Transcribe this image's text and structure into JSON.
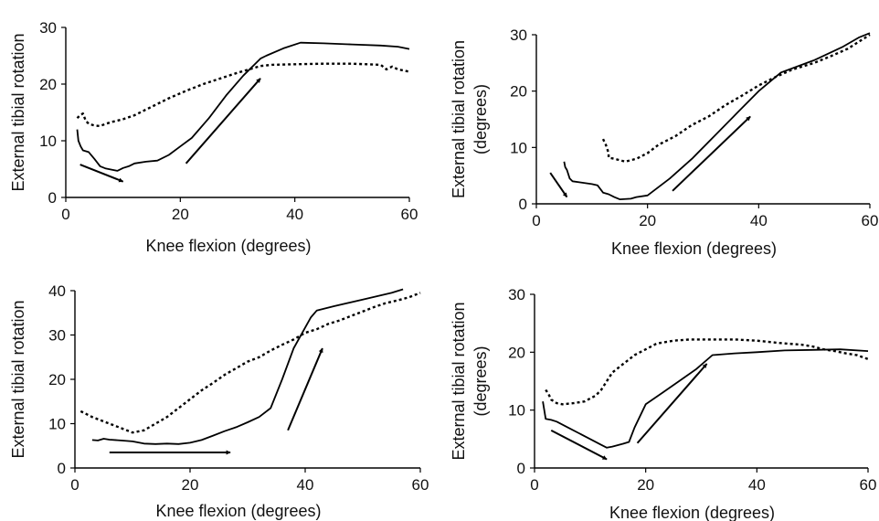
{
  "chart_data": [
    {
      "type": "line",
      "xlabel": "Knee flexion (degrees)",
      "ylabel_lines": [
        "External tibial rotation"
      ],
      "xticks": [
        0,
        20,
        40,
        60
      ],
      "yticks": [
        0,
        10,
        20,
        30
      ],
      "xlim": [
        0,
        60
      ],
      "ylim": [
        0,
        30
      ],
      "grid": false,
      "series": [
        {
          "style": "solid",
          "points": [
            [
              2,
              12
            ],
            [
              2.2,
              10
            ],
            [
              2.6,
              9
            ],
            [
              3,
              8.3
            ],
            [
              4,
              8
            ],
            [
              5,
              6.8
            ],
            [
              6,
              5.5
            ],
            [
              7,
              5.1
            ],
            [
              8,
              4.9
            ],
            [
              9,
              4.7
            ],
            [
              10,
              5.2
            ],
            [
              11,
              5.5
            ],
            [
              12,
              6
            ],
            [
              14,
              6.3
            ],
            [
              16,
              6.5
            ],
            [
              18,
              7.5
            ],
            [
              20,
              9
            ],
            [
              22,
              10.5
            ],
            [
              25,
              14
            ],
            [
              28,
              18
            ],
            [
              31,
              21.5
            ],
            [
              34,
              24.5
            ],
            [
              35,
              25
            ],
            [
              38,
              26.3
            ],
            [
              41,
              27.3
            ],
            [
              45,
              27.2
            ],
            [
              50,
              27
            ],
            [
              55,
              26.8
            ],
            [
              58,
              26.6
            ],
            [
              60,
              26.2
            ]
          ]
        },
        {
          "style": "dotted",
          "points": [
            [
              2,
              14
            ],
            [
              2.5,
              14.5
            ],
            [
              3,
              14.8
            ],
            [
              3.5,
              13.5
            ],
            [
              4,
              13
            ],
            [
              5,
              12.7
            ],
            [
              6,
              12.6
            ],
            [
              7,
              13
            ],
            [
              8,
              13.3
            ],
            [
              10,
              13.8
            ],
            [
              12,
              14.5
            ],
            [
              15,
              16
            ],
            [
              18,
              17.5
            ],
            [
              21,
              18.8
            ],
            [
              24,
              20
            ],
            [
              27,
              21
            ],
            [
              30,
              22
            ],
            [
              32,
              22.6
            ],
            [
              34,
              23.2
            ],
            [
              36,
              23.4
            ],
            [
              40,
              23.5
            ],
            [
              45,
              23.6
            ],
            [
              50,
              23.6
            ],
            [
              55,
              23.4
            ],
            [
              56,
              22.6
            ],
            [
              57,
              23.1
            ],
            [
              58,
              22.6
            ],
            [
              60,
              22.2
            ]
          ]
        }
      ],
      "arrows": [
        {
          "from": [
            2.5,
            5.8
          ],
          "to": [
            10,
            2.8
          ]
        },
        {
          "from": [
            21,
            6
          ],
          "to": [
            34,
            21
          ]
        }
      ]
    },
    {
      "type": "line",
      "xlabel": "Knee flexion (degrees)",
      "ylabel_lines": [
        "External tibial rotation",
        "(degrees)"
      ],
      "xticks": [
        0,
        20,
        40,
        60
      ],
      "yticks": [
        0,
        10,
        20,
        30
      ],
      "xlim": [
        0,
        60
      ],
      "ylim": [
        0,
        30
      ],
      "grid": false,
      "series": [
        {
          "style": "solid",
          "points": [
            [
              5,
              7.5
            ],
            [
              5.2,
              6.5
            ],
            [
              5.5,
              6
            ],
            [
              6,
              4.5
            ],
            [
              6.5,
              4
            ],
            [
              8,
              3.8
            ],
            [
              10,
              3.5
            ],
            [
              11,
              3.3
            ],
            [
              12,
              2
            ],
            [
              13,
              1.7
            ],
            [
              14,
              1.2
            ],
            [
              15,
              0.8
            ],
            [
              17,
              0.9
            ],
            [
              18,
              1.2
            ],
            [
              20,
              1.5
            ],
            [
              24,
              4.5
            ],
            [
              28,
              8
            ],
            [
              32,
              12
            ],
            [
              36,
              16
            ],
            [
              40,
              20
            ],
            [
              44,
              23.3
            ],
            [
              50,
              25.5
            ],
            [
              55,
              27.8
            ],
            [
              58,
              29.5
            ],
            [
              60,
              30.3
            ]
          ]
        },
        {
          "style": "dotted",
          "points": [
            [
              12,
              11.5
            ],
            [
              12.5,
              10.5
            ],
            [
              13,
              9
            ],
            [
              13,
              8.2
            ],
            [
              14,
              8
            ],
            [
              16,
              7.5
            ],
            [
              18,
              8
            ],
            [
              20,
              9
            ],
            [
              22,
              10.5
            ],
            [
              25,
              12
            ],
            [
              28,
              14
            ],
            [
              31,
              15.5
            ],
            [
              34,
              17.5
            ],
            [
              37,
              19.2
            ],
            [
              40,
              21
            ],
            [
              43,
              22.5
            ],
            [
              46,
              23.8
            ],
            [
              50,
              25
            ],
            [
              53,
              26.2
            ],
            [
              56,
              27.5
            ],
            [
              60,
              30
            ]
          ]
        }
      ],
      "arrows": [
        {
          "from": [
            2.5,
            5.5
          ],
          "to": [
            5.5,
            1.2
          ]
        },
        {
          "from": [
            24.5,
            2.3
          ],
          "to": [
            38.5,
            15.5
          ]
        }
      ]
    },
    {
      "type": "line",
      "xlabel": "Knee flexion (degrees)",
      "ylabel_lines": [
        "External tibial rotation"
      ],
      "xticks": [
        0,
        20,
        40,
        60
      ],
      "yticks": [
        0,
        10,
        20,
        30,
        40
      ],
      "xlim": [
        0,
        60
      ],
      "ylim": [
        0,
        40
      ],
      "grid": false,
      "series": [
        {
          "style": "solid",
          "points": [
            [
              3,
              6.3
            ],
            [
              4,
              6.2
            ],
            [
              5,
              6.6
            ],
            [
              6,
              6.4
            ],
            [
              8,
              6.2
            ],
            [
              10,
              6
            ],
            [
              12,
              5.5
            ],
            [
              14,
              5.4
            ],
            [
              16,
              5.5
            ],
            [
              18,
              5.4
            ],
            [
              20,
              5.7
            ],
            [
              22,
              6.3
            ],
            [
              24,
              7.3
            ],
            [
              26,
              8.3
            ],
            [
              28,
              9.2
            ],
            [
              30,
              10.3
            ],
            [
              32,
              11.5
            ],
            [
              34,
              13.5
            ],
            [
              36,
              20
            ],
            [
              38,
              27
            ],
            [
              41,
              34
            ],
            [
              42,
              35.5
            ],
            [
              45,
              36.5
            ],
            [
              50,
              38
            ],
            [
              55,
              39.5
            ],
            [
              57,
              40.3
            ]
          ]
        },
        {
          "style": "dotted",
          "points": [
            [
              1,
              12.8
            ],
            [
              3,
              11.5
            ],
            [
              5,
              10.5
            ],
            [
              7,
              9.5
            ],
            [
              9,
              8.5
            ],
            [
              10,
              8
            ],
            [
              12,
              8.5
            ],
            [
              14,
              10
            ],
            [
              16,
              11.5
            ],
            [
              18,
              13.5
            ],
            [
              20,
              15.5
            ],
            [
              22,
              17.5
            ],
            [
              24,
              19.2
            ],
            [
              26,
              21
            ],
            [
              28,
              22.5
            ],
            [
              30,
              24
            ],
            [
              32,
              25
            ],
            [
              34,
              26.5
            ],
            [
              36,
              27.8
            ],
            [
              38,
              29
            ],
            [
              40,
              30.5
            ],
            [
              42,
              31.3
            ],
            [
              44,
              32.5
            ],
            [
              46,
              33.3
            ],
            [
              48,
              34.3
            ],
            [
              50,
              35.3
            ],
            [
              52,
              36.3
            ],
            [
              54,
              37.2
            ],
            [
              56,
              37.8
            ],
            [
              58,
              38.5
            ],
            [
              60,
              39.5
            ]
          ]
        }
      ],
      "arrows": [
        {
          "from": [
            6,
            3.5
          ],
          "to": [
            27,
            3.5
          ]
        },
        {
          "from": [
            37,
            8.5
          ],
          "to": [
            43,
            27
          ]
        }
      ]
    },
    {
      "type": "line",
      "xlabel": "Knee flexion (degrees)",
      "ylabel_lines": [
        "External tibial rotation",
        "(degrees)"
      ],
      "xticks": [
        0,
        20,
        40,
        60
      ],
      "yticks": [
        0,
        10,
        20,
        30
      ],
      "xlim": [
        0,
        60
      ],
      "ylim": [
        0,
        30
      ],
      "grid": false,
      "series": [
        {
          "style": "solid",
          "points": [
            [
              1.5,
              11.5
            ],
            [
              2,
              8.5
            ],
            [
              3,
              8.3
            ],
            [
              4,
              8
            ],
            [
              6,
              7
            ],
            [
              8,
              6
            ],
            [
              10,
              5
            ],
            [
              12,
              4
            ],
            [
              13,
              3.5
            ],
            [
              14,
              3.7
            ],
            [
              16,
              4.2
            ],
            [
              17,
              4.5
            ],
            [
              18,
              7
            ],
            [
              20,
              11
            ],
            [
              23,
              13
            ],
            [
              26,
              15
            ],
            [
              29,
              17
            ],
            [
              32,
              19.5
            ],
            [
              36,
              19.8
            ],
            [
              40,
              20
            ],
            [
              45,
              20.3
            ],
            [
              50,
              20.4
            ],
            [
              55,
              20.5
            ],
            [
              60,
              20.2
            ]
          ]
        },
        {
          "style": "dotted",
          "points": [
            [
              2,
              13.5
            ],
            [
              2.5,
              12.8
            ],
            [
              3,
              11.8
            ],
            [
              4,
              11.2
            ],
            [
              5,
              11
            ],
            [
              7,
              11.2
            ],
            [
              9,
              11.5
            ],
            [
              11,
              12.5
            ],
            [
              12,
              13.5
            ],
            [
              13,
              15
            ],
            [
              14,
              16.5
            ],
            [
              16,
              18
            ],
            [
              18,
              19.5
            ],
            [
              20,
              20.5
            ],
            [
              22,
              21.5
            ],
            [
              25,
              22
            ],
            [
              28,
              22.2
            ],
            [
              32,
              22.2
            ],
            [
              36,
              22.2
            ],
            [
              40,
              22
            ],
            [
              44,
              21.6
            ],
            [
              48,
              21.3
            ],
            [
              50,
              21
            ],
            [
              52,
              20.5
            ],
            [
              54,
              20.2
            ],
            [
              56,
              19.8
            ],
            [
              58,
              19.5
            ],
            [
              60,
              18.8
            ]
          ]
        }
      ],
      "arrows": [
        {
          "from": [
            3,
            6.5
          ],
          "to": [
            13,
            1.5
          ]
        },
        {
          "from": [
            18.5,
            4.3
          ],
          "to": [
            31,
            18
          ]
        }
      ]
    }
  ]
}
